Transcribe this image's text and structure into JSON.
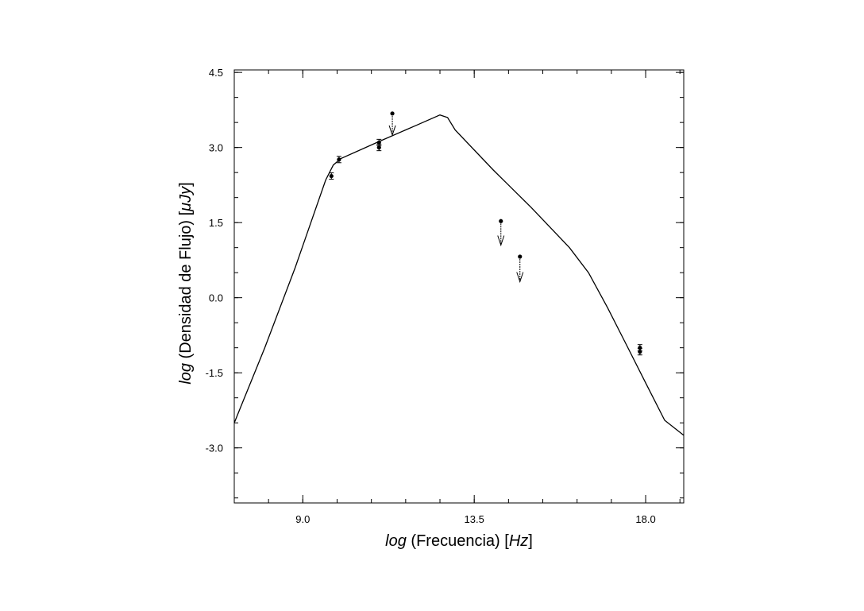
{
  "chart_data": {
    "type": "scatter",
    "title": "",
    "xlabel": {
      "italic": "log",
      "text": " (Frecuencia) [",
      "unit": "Hz",
      "close": "]"
    },
    "ylabel": {
      "italic": "log",
      "text": " (Densidad de Flujo)  [",
      "unit": "μJy",
      "close": "]"
    },
    "xlim": [
      7.2,
      19.0
    ],
    "ylim": [
      -4.1,
      4.55
    ],
    "x_ticks": [
      {
        "value": 9.0,
        "label": "9.0"
      },
      {
        "value": 13.5,
        "label": "13.5"
      },
      {
        "value": 18.0,
        "label": "18.0"
      }
    ],
    "y_ticks": [
      {
        "value": 4.5,
        "label": "4.5"
      },
      {
        "value": 3.0,
        "label": "3.0"
      },
      {
        "value": 1.5,
        "label": "1.5"
      },
      {
        "value": 0.0,
        "label": "0.0"
      },
      {
        "value": -1.5,
        "label": "-1.5"
      },
      {
        "value": -3.0,
        "label": "-3.0"
      }
    ],
    "x_minor_step": 0.9,
    "y_minor_step": 0.5,
    "grid": false,
    "series": [
      {
        "kind": "model_line",
        "x": [
          7.2,
          8.0,
          8.8,
          9.6,
          9.8,
          10.0,
          11.0,
          12.0,
          12.6,
          12.8,
          13.0,
          14.0,
          15.0,
          16.0,
          16.5,
          17.0,
          17.5,
          18.0,
          18.5,
          19.0
        ],
        "y": [
          -2.5,
          -1.0,
          0.6,
          2.35,
          2.65,
          2.78,
          3.12,
          3.45,
          3.65,
          3.6,
          3.35,
          2.55,
          1.8,
          1.0,
          0.5,
          -0.2,
          -0.95,
          -1.7,
          -2.45,
          -2.75
        ]
      },
      {
        "kind": "detections",
        "points": [
          {
            "x": 9.75,
            "y": 2.43
          },
          {
            "x": 9.95,
            "y": 2.76
          },
          {
            "x": 11.0,
            "y": 3.1
          },
          {
            "x": 11.0,
            "y": 3.0
          },
          {
            "x": 17.85,
            "y": -1.0
          },
          {
            "x": 17.85,
            "y": -1.08
          }
        ]
      },
      {
        "kind": "upper_limits",
        "points": [
          {
            "x": 11.35,
            "y": 3.68,
            "to": 3.25
          },
          {
            "x": 14.2,
            "y": 1.53,
            "to": 1.05
          },
          {
            "x": 14.7,
            "y": 0.82,
            "to": 0.32
          }
        ]
      }
    ]
  }
}
